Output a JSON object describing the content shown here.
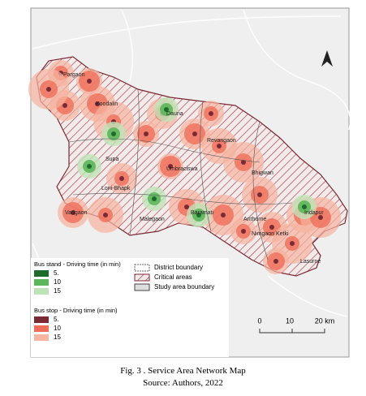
{
  "map": {
    "place_labels": [
      "Pargaon",
      "Koodalin",
      "Dauna",
      "Revangaon",
      "Supa",
      "Umbraciswa",
      "Bhigwan",
      "Loni-Bhapk",
      "Vadgaon",
      "Malegaon",
      "Baramati",
      "Anthurne",
      "Nimgaon Ketki",
      "Indapur",
      "Lasurne"
    ],
    "north_arrow": "A",
    "scale_bar": [
      "0",
      "10",
      "20 km"
    ]
  },
  "legend": {
    "bus_stand": {
      "title": "Bus stand - Driving time (in min)",
      "items": [
        "5.",
        "10",
        "15"
      ]
    },
    "bus_stop": {
      "title": "Bus stop - Driving time (in min)",
      "items": [
        "5.",
        "10",
        "15"
      ]
    },
    "areas": [
      "District boundary",
      "Critical areas",
      "Study area boundary"
    ]
  },
  "caption": {
    "figure": "Fig. 3 . Service Area Network Map",
    "source": "Source:  Authors, 2022"
  }
}
